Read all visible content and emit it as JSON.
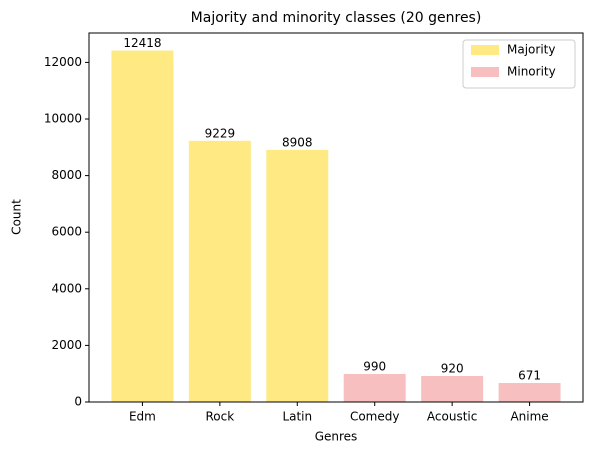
{
  "chart_data": {
    "type": "bar",
    "title": "Majority and minority classes (20 genres)",
    "xlabel": "Genres",
    "ylabel": "Count",
    "categories": [
      "Edm",
      "Rock",
      "Latin",
      "Comedy",
      "Acoustic",
      "Anime"
    ],
    "series": [
      {
        "name": "Majority",
        "color": "#fee982",
        "values": [
          12418,
          9229,
          8908,
          null,
          null,
          null
        ]
      },
      {
        "name": "Minority",
        "color": "#f7bfbf",
        "values": [
          null,
          null,
          null,
          990,
          920,
          671
        ]
      }
    ],
    "ylim": [
      0,
      13039
    ],
    "yticks": [
      0,
      2000,
      4000,
      6000,
      8000,
      10000,
      12000
    ],
    "legend": "upper right"
  }
}
